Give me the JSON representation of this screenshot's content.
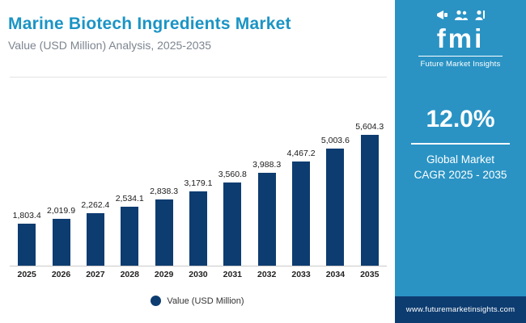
{
  "header": {
    "title": "Marine Biotech Ingredients Market",
    "subtitle": "Value (USD Million) Analysis, 2025-2035"
  },
  "chart_data": {
    "type": "bar",
    "title": "Marine Biotech Ingredients Market",
    "subtitle": "Value (USD Million) Analysis, 2025-2035",
    "categories": [
      "2025",
      "2026",
      "2027",
      "2028",
      "2029",
      "2030",
      "2031",
      "2032",
      "2033",
      "2034",
      "2035"
    ],
    "values": [
      1803.4,
      2019.9,
      2262.4,
      2534.1,
      2838.3,
      3179.1,
      3560.8,
      3988.3,
      4467.2,
      5003.6,
      5604.3
    ],
    "value_labels": [
      "1,803.4",
      "2,019.9",
      "2,262.4",
      "2,534.1",
      "2,838.3",
      "3,179.1",
      "3,560.8",
      "3,988.3",
      "4,467.2",
      "5,003.6",
      "5,604.3"
    ],
    "legend": "Value (USD Million)",
    "xlabel": "",
    "ylabel": "Value (USD Million)",
    "ylim": [
      0,
      6000
    ],
    "grid": false,
    "legend_position": "bottom",
    "bar_color": "#0d3c70"
  },
  "sidebar": {
    "logo_text": "fmi",
    "brand_name": "Future Market Insights",
    "cagr_value": "12.0%",
    "cagr_line1": "Global Market",
    "cagr_line2": "CAGR 2025 - 2035",
    "website": "www.futuremarketinsights.com",
    "panel_color": "#2a93c4",
    "footer_color": "#0d3c70"
  }
}
